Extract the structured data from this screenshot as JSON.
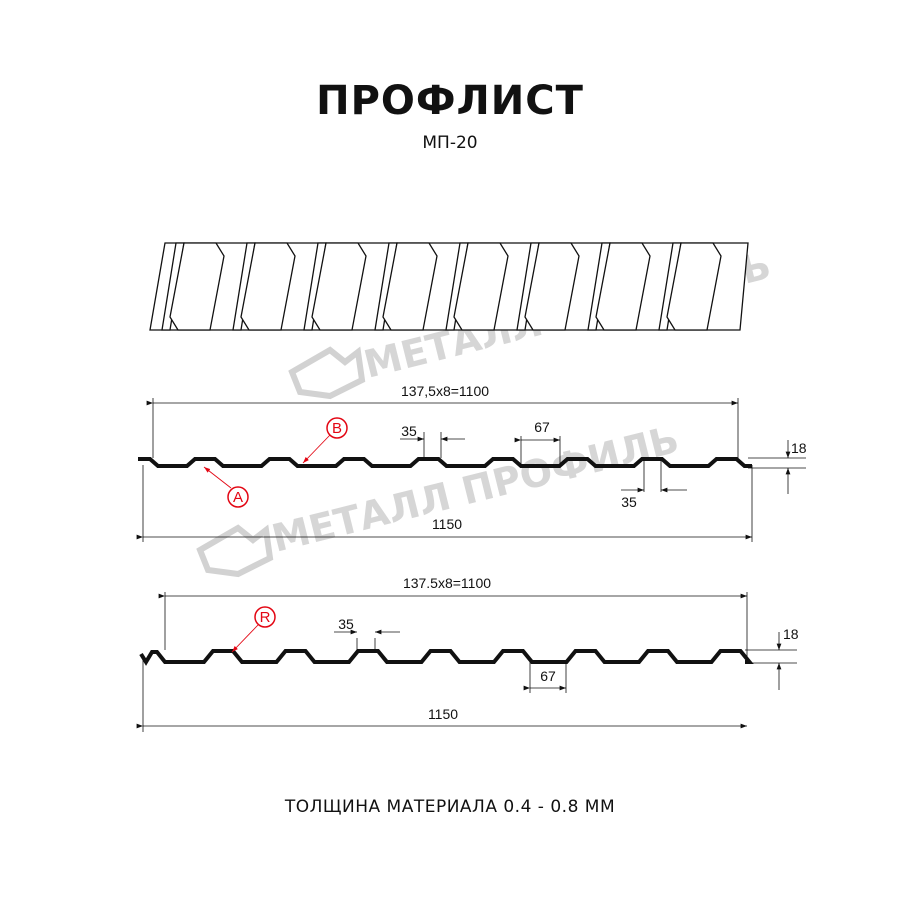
{
  "title": "ПРОФЛИСТ",
  "subtitle": "МП-20",
  "footer": "ТОЛЩИНА МАТЕРИАЛА 0.4 - 0.8 ММ",
  "watermark": "МЕТАЛЛ ПРОФИЛЬ",
  "colors": {
    "profile": "#111111",
    "marker": "#e30613",
    "watermark": "#cfcfcf"
  },
  "profile_1": {
    "span_label": "137,5x8=1100",
    "total_label": "1150",
    "crest_label": "35",
    "trough_label": "35",
    "gap_label": "67",
    "height_label": "18",
    "markers": [
      "A",
      "B"
    ]
  },
  "profile_2": {
    "span_label": "137.5x8=1100",
    "total_label": "1150",
    "crest_label": "35",
    "gap_label": "67",
    "height_label": "18",
    "markers": [
      "R"
    ]
  }
}
